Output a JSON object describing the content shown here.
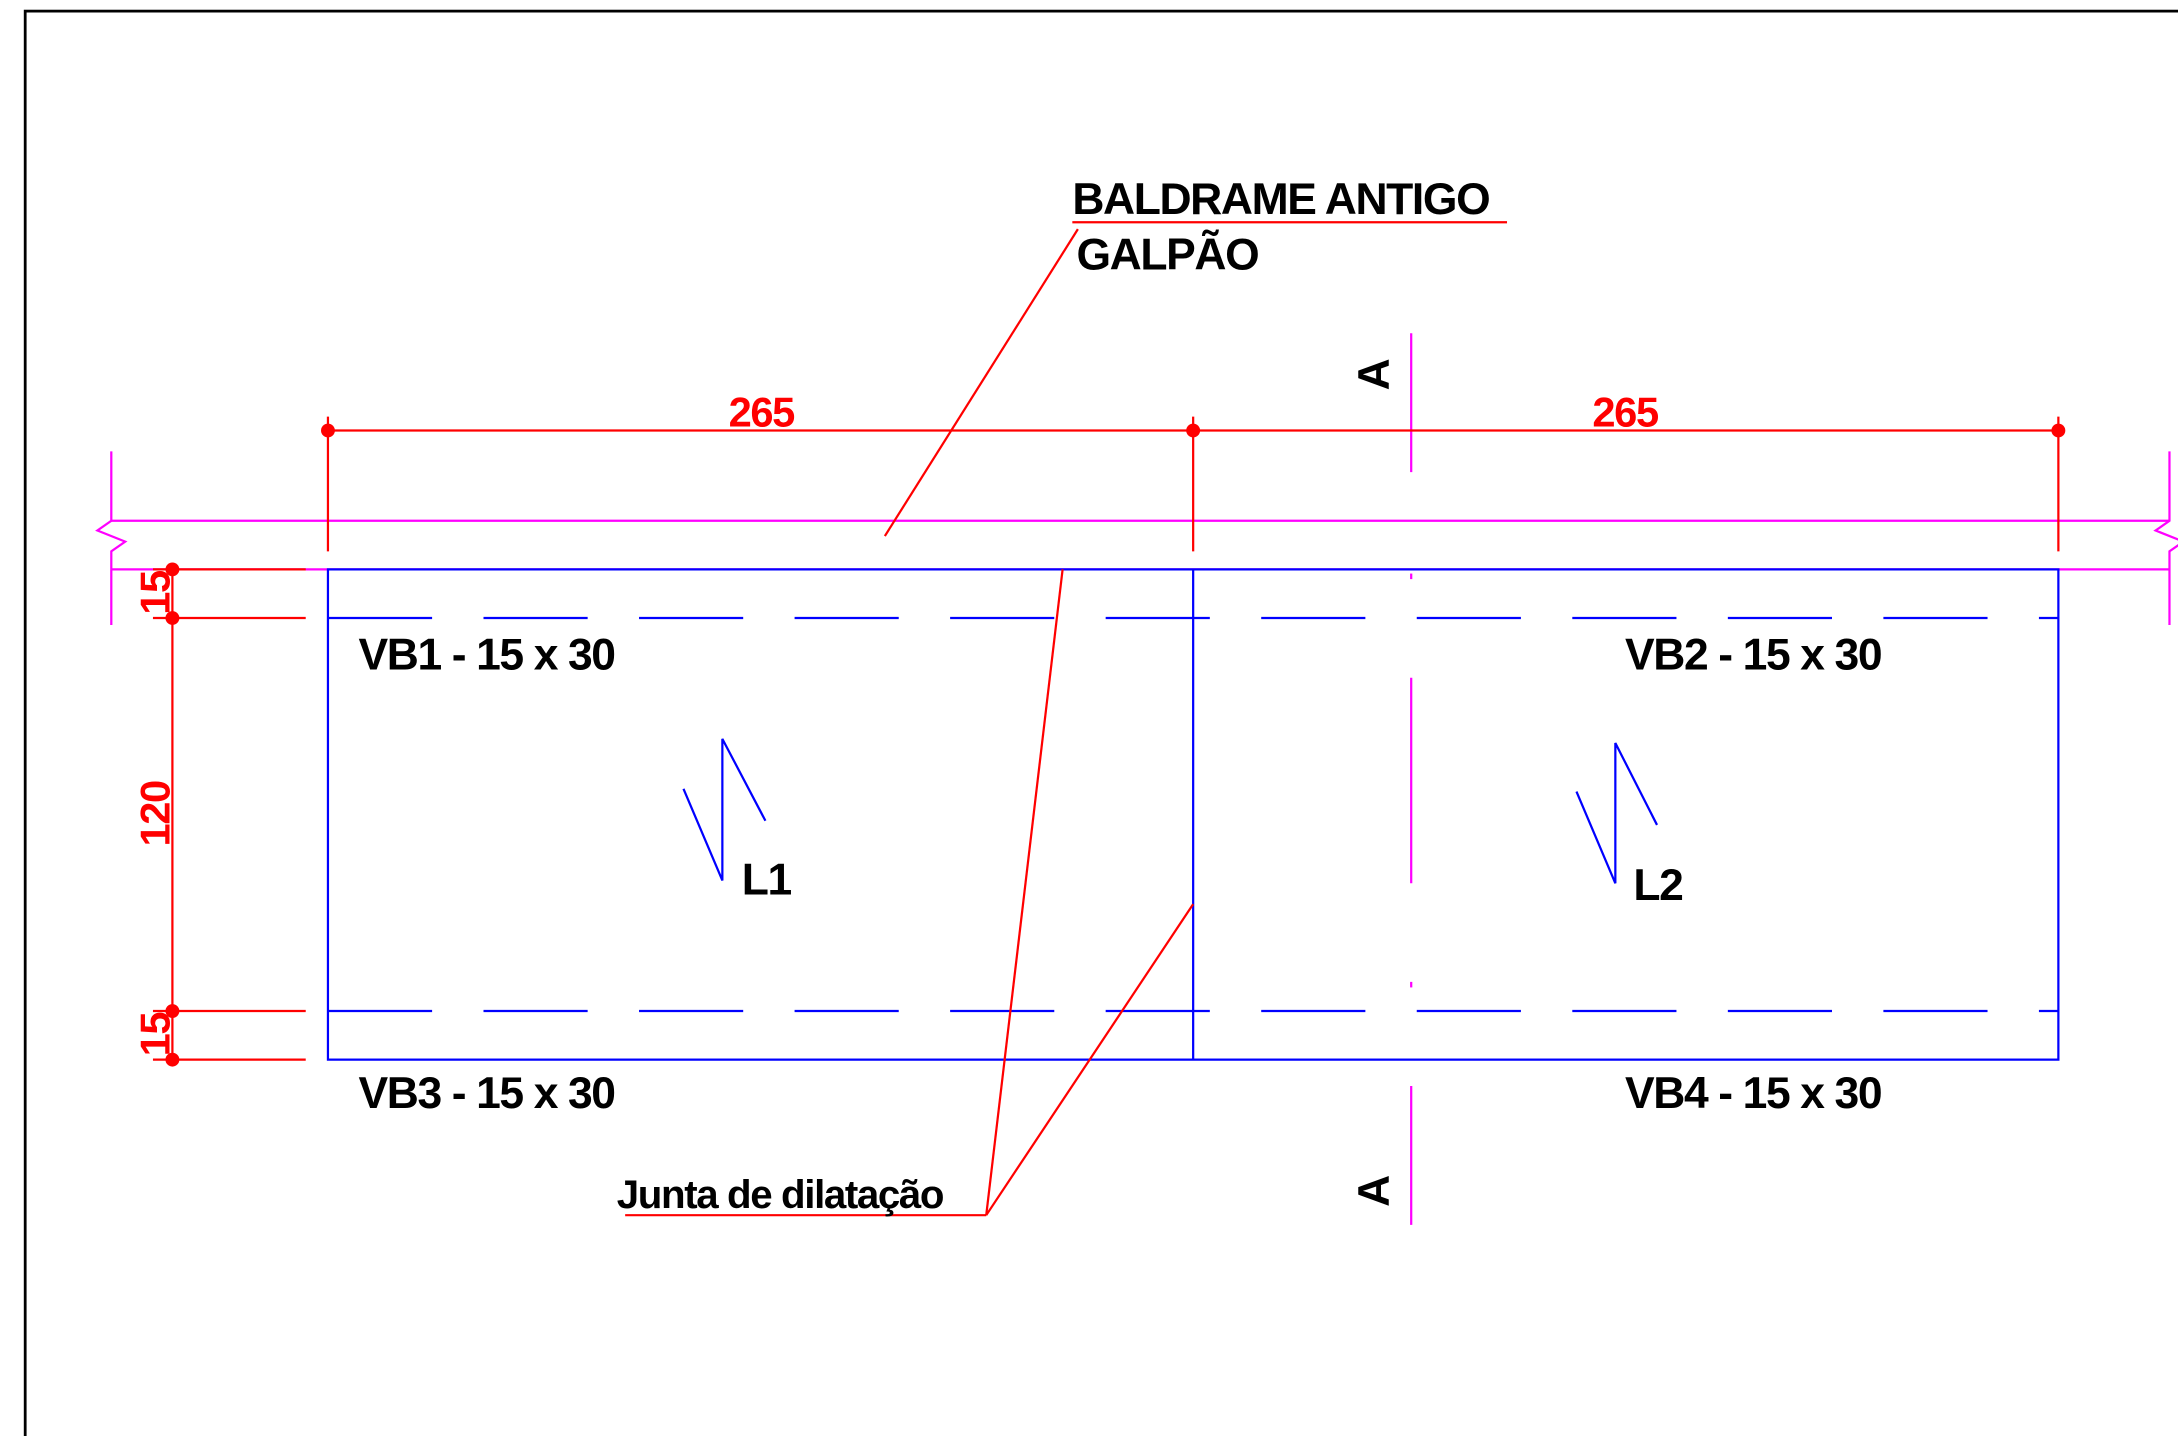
{
  "leaders": {
    "baldrame": [
      "BALDRAME ANTIGO",
      "GALPÃO"
    ],
    "junta": "Junta de dilatação"
  },
  "dimensions": {
    "horizontal": [
      265,
      265
    ],
    "vertical": [
      15,
      120,
      15
    ]
  },
  "beams": [
    "VB1 - 15 x 30",
    "VB2 - 15 x 30",
    "VB3 - 15 x 30",
    "VB4 - 15 x 30"
  ],
  "slabs": [
    "L1",
    "L2"
  ],
  "section": [
    "A",
    "A"
  ]
}
